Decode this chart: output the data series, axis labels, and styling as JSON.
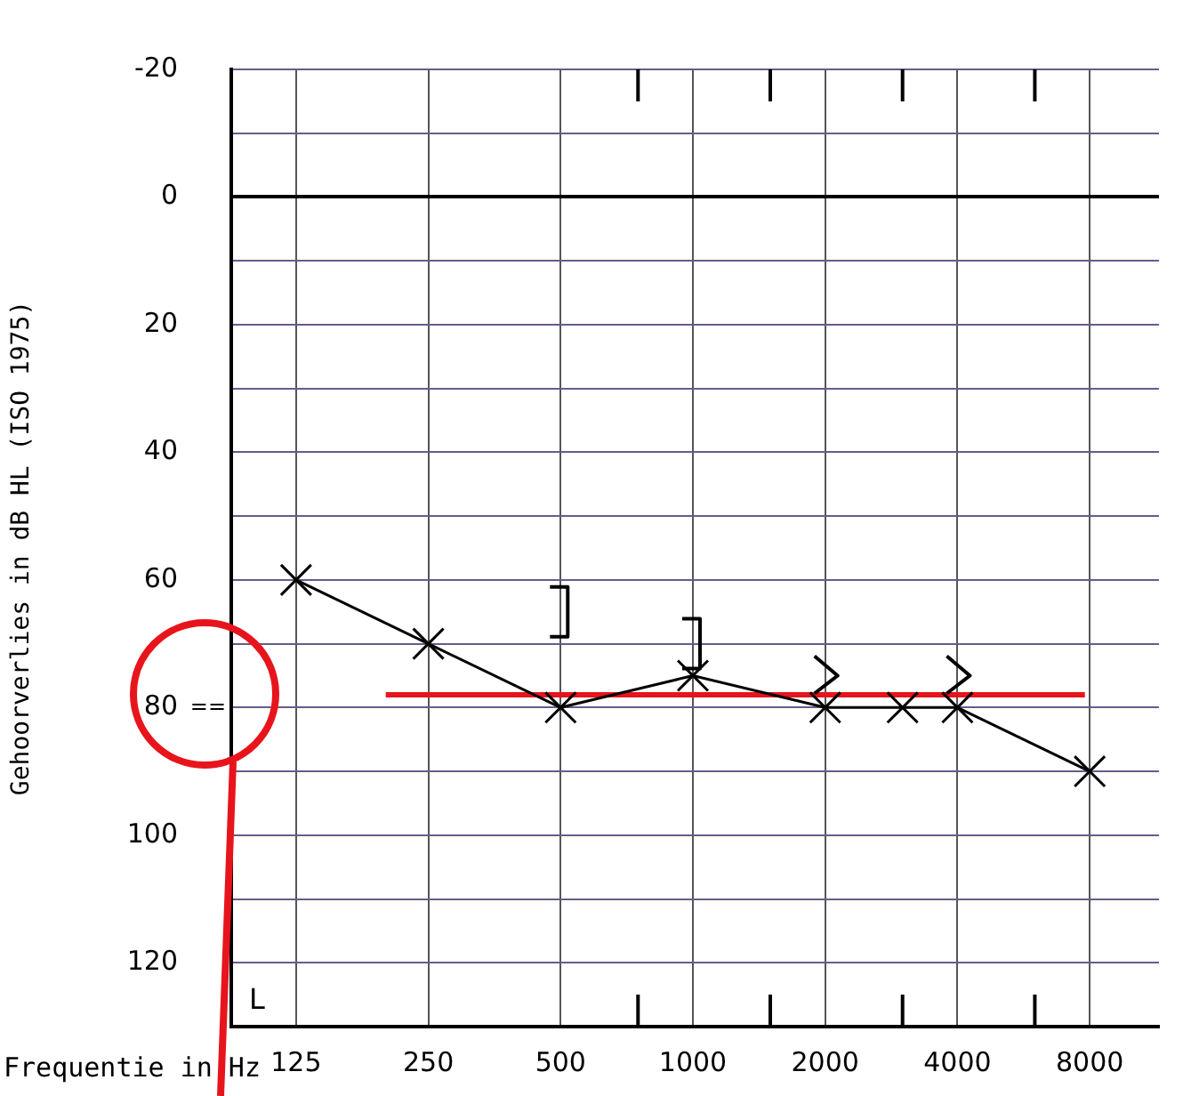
{
  "chart_data": {
    "type": "line",
    "xlabel": "Frequentie in Hz",
    "ylabel": "Gehoorverlies in dB HL (ISO 1975)",
    "log": "x",
    "grid": true,
    "legend": false,
    "xlim": [
      89,
      11500
    ],
    "xticks": [
      125,
      250,
      500,
      1000,
      2000,
      4000,
      8000
    ],
    "ylim": [
      130,
      -20
    ],
    "yticks": [
      -20,
      {
        "value": -10,
        "label": null
      },
      0,
      {
        "value": 10,
        "label": null
      },
      20,
      {
        "value": 30,
        "label": null
      },
      40,
      {
        "value": 50,
        "label": null
      },
      60,
      {
        "value": 70,
        "label": null
      },
      80,
      {
        "value": 90,
        "label": null
      },
      100,
      {
        "value": 110,
        "label": null
      },
      120
    ],
    "annotations": [
      "L",
      "=="
    ],
    "series": [
      {
        "color": "#000000",
        "marker": "cross",
        "x": [
          125,
          250,
          500,
          1000,
          2000,
          3000,
          4000,
          8000
        ],
        "values": [
          60,
          70,
          80,
          75,
          80,
          80,
          80,
          90
        ]
      },
      {
        "type": "scatter",
        "color": "#000000",
        "x": [
          500,
          1000
        ],
        "values": [
          65,
          70
        ]
      },
      {
        "type": "scatter",
        "color": "#000000",
        "x": [
          2000,
          4000
        ],
        "values": [
          75,
          75
        ]
      },
      {
        "color": "#e8141c",
        "marker": "none",
        "x": [
          200,
          7800
        ],
        "values": [
          78,
          78
        ]
      }
    ]
  }
}
